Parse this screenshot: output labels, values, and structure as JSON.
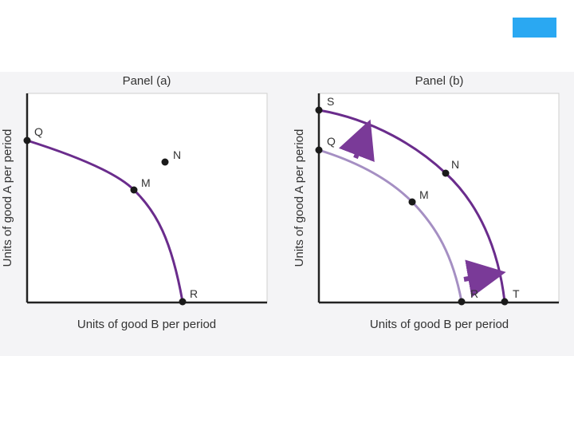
{
  "colors": {
    "curve_dark": "#6a2c8c",
    "curve_light": "#a58fc3",
    "arrow": "#7a3a98",
    "accent_tab": "#2aa8f2",
    "axis": "#222222",
    "background_band": "#f4f4f6"
  },
  "panel_a": {
    "title": "Panel (a)",
    "xlabel": "Units of good B per period",
    "ylabel": "Units of good A per period",
    "points": {
      "q": "Q",
      "m": "M",
      "n": "N",
      "r": "R"
    }
  },
  "panel_b": {
    "title": "Panel (b)",
    "xlabel": "Units of good B per period",
    "ylabel": "Units of good A per period",
    "points": {
      "s": "S",
      "q": "Q",
      "n": "N",
      "m": "M",
      "r": "R",
      "t": "T"
    }
  },
  "shapes": {
    "blue_tab": "accent-rectangle",
    "shift_arrows": "outward-shift-arrows"
  }
}
